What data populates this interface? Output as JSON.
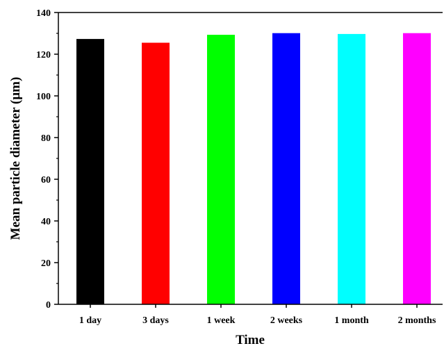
{
  "chart_data": {
    "type": "bar",
    "xlabel": "Time",
    "ylabel": "Mean particle diameter (μm)",
    "categories": [
      "1 day",
      "3 days",
      "1 week",
      "2 weeks",
      "1 month",
      "2 months"
    ],
    "values": [
      127.3,
      125.5,
      129.3,
      130.1,
      129.7,
      130.1
    ],
    "colors": [
      "#000000",
      "#ff0000",
      "#00ff00",
      "#0000ff",
      "#00ffff",
      "#ff00ff"
    ],
    "ylim": [
      0,
      140
    ],
    "yticks": [
      0,
      20,
      40,
      60,
      80,
      100,
      120,
      140
    ],
    "grid": false,
    "legend": "none"
  }
}
